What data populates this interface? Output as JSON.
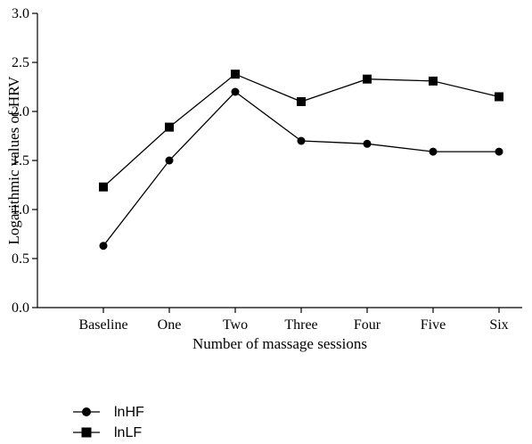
{
  "chart_data": {
    "type": "line",
    "categories": [
      "Baseline",
      "One",
      "Two",
      "Three",
      "Four",
      "Five",
      "Six"
    ],
    "series": [
      {
        "name": "lnHF",
        "marker": "circle",
        "values": [
          0.63,
          1.5,
          2.2,
          1.7,
          1.67,
          1.59,
          1.59
        ]
      },
      {
        "name": "lnLF",
        "marker": "square",
        "values": [
          1.23,
          1.84,
          2.38,
          2.1,
          2.33,
          2.31,
          2.15
        ]
      }
    ],
    "title": "",
    "xlabel": "Number of massage sessions",
    "ylabel": "Logarithmic values of HRV",
    "ylim": [
      0.0,
      3.0
    ],
    "yticks": [
      "0.0",
      "0.5",
      "1.0",
      "1.5",
      "2.0",
      "2.5",
      "3.0"
    ],
    "grid": false,
    "legend_position": "bottom-left",
    "line_color": "#000000"
  }
}
